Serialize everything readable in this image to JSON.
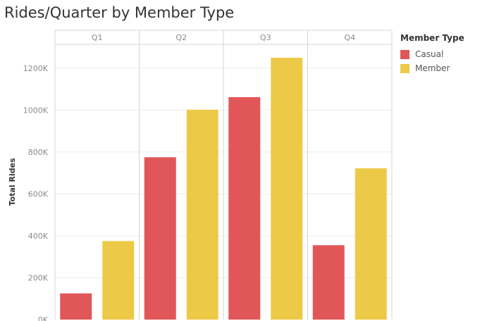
{
  "title": "Rides/Quarter by Member Type",
  "colors": {
    "Casual": "#e15759",
    "Member": "#edc948"
  },
  "chart_data": {
    "type": "bar",
    "title": "Rides/Quarter by Member Type",
    "xlabel": "",
    "ylabel": "Total Rides",
    "categories": [
      "Q1",
      "Q2",
      "Q3",
      "Q4"
    ],
    "series": [
      {
        "name": "Casual",
        "values": [
          125000,
          775000,
          1062000,
          355000
        ]
      },
      {
        "name": "Member",
        "values": [
          375000,
          1002000,
          1250000,
          722000
        ]
      }
    ],
    "ylim": [
      0,
      1300000
    ],
    "yticks": [
      0,
      200000,
      400000,
      600000,
      800000,
      1000000,
      1200000
    ],
    "ytick_labels": [
      "0K",
      "200K",
      "400K",
      "600K",
      "800K",
      "1000K",
      "1200K"
    ],
    "legend": {
      "title": "Member Type",
      "placement": "right",
      "entries": [
        "Casual",
        "Member"
      ]
    },
    "grid": true
  }
}
